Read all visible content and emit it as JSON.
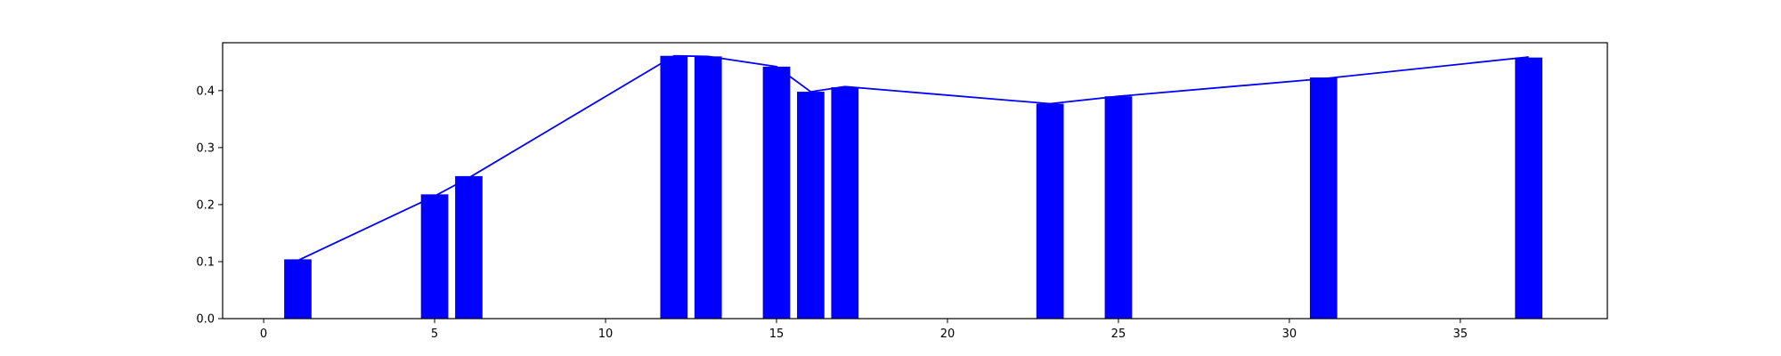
{
  "chart_data": {
    "type": "bar",
    "title": "",
    "xlabel": "",
    "ylabel": "",
    "xlim": [
      -1.2,
      39.3
    ],
    "ylim": [
      0,
      0.484
    ],
    "grid": false,
    "legend": "none",
    "bar_color": "#0000ff",
    "line_color": "#0000ff",
    "bar_width": 0.8,
    "x_ticks": [
      {
        "value": 0,
        "label": "0"
      },
      {
        "value": 5,
        "label": "5"
      },
      {
        "value": 10,
        "label": "10"
      },
      {
        "value": 15,
        "label": "15"
      },
      {
        "value": 20,
        "label": "20"
      },
      {
        "value": 25,
        "label": "25"
      },
      {
        "value": 30,
        "label": "30"
      },
      {
        "value": 35,
        "label": "35"
      }
    ],
    "y_ticks": [
      {
        "value": 0.0,
        "label": "0.0"
      },
      {
        "value": 0.1,
        "label": "0.1"
      },
      {
        "value": 0.2,
        "label": "0.2"
      },
      {
        "value": 0.3,
        "label": "0.3"
      },
      {
        "value": 0.4,
        "label": "0.4"
      }
    ],
    "x": [
      1,
      5,
      6,
      12,
      13,
      15,
      16,
      17,
      23,
      25,
      31,
      37
    ],
    "bar_values": [
      0.104,
      0.218,
      0.25,
      0.461,
      0.46,
      0.442,
      0.398,
      0.406,
      0.377,
      0.39,
      0.423,
      0.458
    ],
    "line_values": [
      0.102,
      0.215,
      0.247,
      0.461,
      0.46,
      0.442,
      0.398,
      0.407,
      0.377,
      0.39,
      0.421,
      0.459
    ]
  }
}
